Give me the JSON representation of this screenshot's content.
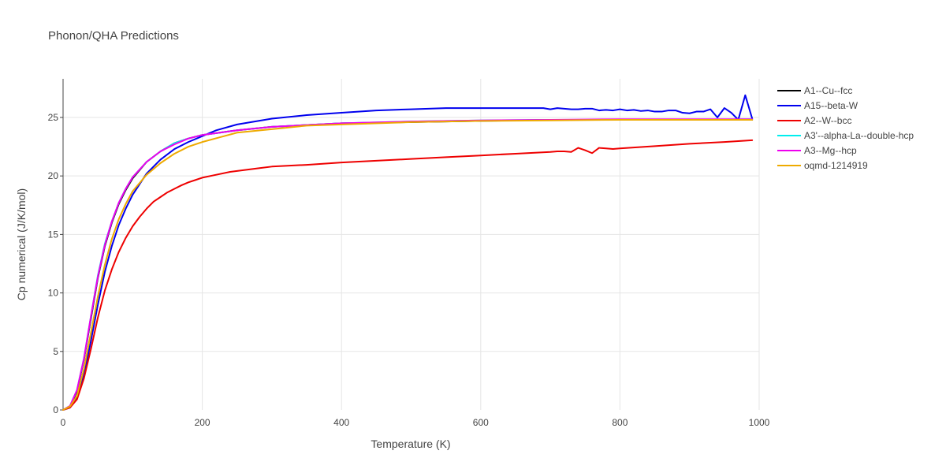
{
  "chart_data": {
    "type": "line",
    "title": "Phonon/QHA Predictions",
    "xlabel": "Temperature (K)",
    "ylabel": "Cp numerical (J/K/mol)",
    "xlim": [
      0,
      1000
    ],
    "ylim": [
      0,
      28.3
    ],
    "xticks": [
      0,
      200,
      400,
      600,
      800,
      1000
    ],
    "yticks": [
      0,
      5,
      10,
      15,
      20,
      25
    ],
    "grid": true,
    "legend_position": "top-right",
    "series": [
      {
        "name": "A1--Cu--fcc",
        "color": "#000000",
        "x": [
          0,
          10,
          20,
          30,
          40,
          50,
          60,
          70,
          80,
          90,
          100,
          120,
          140,
          160,
          180,
          200,
          250,
          300,
          400,
          500,
          600,
          700,
          800,
          900,
          990
        ],
        "y": [
          0,
          0.3,
          1.6,
          4.3,
          7.8,
          11.3,
          14.0,
          16.0,
          17.6,
          18.8,
          19.8,
          21.2,
          22.1,
          22.8,
          23.2,
          23.5,
          23.9,
          24.2,
          24.5,
          24.6,
          24.7,
          24.8,
          24.8,
          24.8,
          24.8
        ]
      },
      {
        "name": "A15--beta-W",
        "color": "#0000ee",
        "x": [
          0,
          10,
          20,
          30,
          40,
          50,
          60,
          70,
          80,
          90,
          100,
          120,
          140,
          160,
          180,
          200,
          220,
          250,
          300,
          350,
          400,
          450,
          500,
          550,
          600,
          650,
          690,
          700,
          710,
          720,
          730,
          740,
          750,
          760,
          770,
          780,
          790,
          800,
          810,
          820,
          830,
          840,
          850,
          860,
          870,
          880,
          890,
          900,
          910,
          920,
          930,
          940,
          950,
          960,
          970,
          980,
          990
        ],
        "y": [
          0,
          0.2,
          1.0,
          3.0,
          5.9,
          9.0,
          11.8,
          14.0,
          15.8,
          17.2,
          18.4,
          20.2,
          21.4,
          22.3,
          22.9,
          23.4,
          23.9,
          24.4,
          24.9,
          25.2,
          25.4,
          25.6,
          25.7,
          25.8,
          25.8,
          25.8,
          25.8,
          25.7,
          25.8,
          25.75,
          25.7,
          25.7,
          25.75,
          25.75,
          25.6,
          25.65,
          25.6,
          25.7,
          25.6,
          25.65,
          25.55,
          25.6,
          25.5,
          25.5,
          25.6,
          25.6,
          25.4,
          25.35,
          25.5,
          25.5,
          25.7,
          25.0,
          25.8,
          25.4,
          24.8,
          26.9,
          24.9
        ]
      },
      {
        "name": "A2--W--bcc",
        "color": "#ee0000",
        "x": [
          0,
          10,
          20,
          30,
          40,
          50,
          60,
          70,
          80,
          90,
          100,
          110,
          120,
          130,
          140,
          150,
          160,
          170,
          180,
          190,
          200,
          220,
          240,
          260,
          280,
          300,
          350,
          400,
          450,
          500,
          550,
          600,
          650,
          700,
          710,
          720,
          730,
          740,
          750,
          760,
          770,
          780,
          790,
          800,
          850,
          900,
          950,
          990
        ],
        "y": [
          0,
          0.2,
          0.9,
          2.7,
          5.2,
          7.9,
          10.2,
          12.0,
          13.5,
          14.7,
          15.7,
          16.5,
          17.2,
          17.8,
          18.2,
          18.6,
          18.9,
          19.2,
          19.45,
          19.65,
          19.85,
          20.1,
          20.35,
          20.5,
          20.65,
          20.8,
          20.95,
          21.15,
          21.3,
          21.45,
          21.6,
          21.75,
          21.9,
          22.05,
          22.1,
          22.1,
          22.05,
          22.4,
          22.2,
          21.95,
          22.4,
          22.35,
          22.3,
          22.35,
          22.55,
          22.75,
          22.9,
          23.05
        ]
      },
      {
        "name": "A3'--alpha-La--double-hcp",
        "color": "#00eeee",
        "x": [
          0,
          10,
          20,
          30,
          40,
          50,
          60,
          70,
          80,
          90,
          100,
          120,
          140,
          160,
          180,
          200,
          250,
          300,
          400,
          500,
          600,
          700,
          800,
          900,
          990
        ],
        "y": [
          0,
          0.35,
          1.7,
          4.4,
          8.0,
          11.5,
          14.2,
          16.1,
          17.7,
          18.9,
          19.9,
          21.2,
          22.1,
          22.8,
          23.2,
          23.5,
          23.9,
          24.2,
          24.5,
          24.65,
          24.75,
          24.8,
          24.8,
          24.8,
          24.85
        ]
      },
      {
        "name": "A3--Mg--hcp",
        "color": "#ee00ee",
        "x": [
          0,
          10,
          20,
          30,
          40,
          50,
          60,
          70,
          80,
          90,
          100,
          120,
          140,
          160,
          180,
          200,
          250,
          300,
          400,
          500,
          600,
          700,
          800,
          900,
          990
        ],
        "y": [
          0,
          0.35,
          1.7,
          4.4,
          8.0,
          11.4,
          14.1,
          16.1,
          17.7,
          18.9,
          19.9,
          21.2,
          22.1,
          22.7,
          23.2,
          23.5,
          23.9,
          24.2,
          24.5,
          24.65,
          24.75,
          24.8,
          24.85,
          24.85,
          24.85
        ]
      },
      {
        "name": "oqmd-1214919",
        "color": "#eeaa00",
        "x": [
          0,
          10,
          20,
          30,
          40,
          50,
          60,
          70,
          80,
          90,
          100,
          120,
          140,
          160,
          180,
          200,
          225,
          250,
          300,
          350,
          400,
          500,
          600,
          700,
          800,
          900,
          990
        ],
        "y": [
          0,
          0.3,
          1.2,
          3.5,
          6.6,
          9.7,
          12.4,
          14.6,
          16.3,
          17.6,
          18.7,
          20.1,
          21.1,
          21.9,
          22.5,
          22.9,
          23.3,
          23.7,
          24.0,
          24.3,
          24.4,
          24.6,
          24.7,
          24.75,
          24.8,
          24.8,
          24.8
        ]
      }
    ]
  }
}
